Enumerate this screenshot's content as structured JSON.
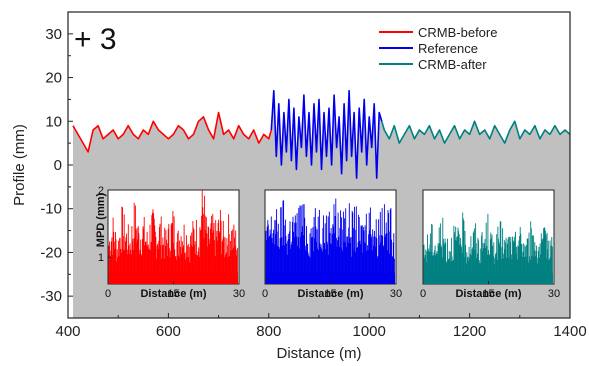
{
  "panel_label": "+ 3",
  "chart_data": [
    {
      "type": "line",
      "xlabel": "Distance (m)",
      "ylabel": "Profile (mm)",
      "xlim": [
        400,
        1400
      ],
      "ylim": [
        -35,
        35
      ],
      "x_ticks": [
        400,
        600,
        800,
        1000,
        1200,
        1400
      ],
      "y_ticks": [
        30,
        20,
        10,
        0,
        -10,
        -20,
        -30
      ],
      "fill_below": "#c0c0c0",
      "series": [
        {
          "name": "CRMB-before",
          "color": "#ff0000",
          "x": [
            410,
            420,
            430,
            440,
            450,
            460,
            470,
            480,
            490,
            500,
            510,
            520,
            530,
            540,
            550,
            560,
            570,
            580,
            590,
            600,
            610,
            620,
            630,
            640,
            650,
            660,
            670,
            680,
            690,
            700,
            710,
            720,
            730,
            740,
            750,
            760,
            770,
            780,
            790,
            800,
            805
          ],
          "y": [
            9,
            7,
            5,
            3,
            8,
            9,
            6,
            7,
            8,
            6,
            7,
            9,
            7,
            6,
            8,
            7,
            10,
            8,
            7,
            6,
            7,
            9,
            8,
            6,
            7,
            10,
            11,
            8,
            6,
            12,
            7,
            8,
            6,
            9,
            7,
            6,
            8,
            5,
            7,
            6,
            8
          ]
        },
        {
          "name": "Reference",
          "color": "#0000ee",
          "x": [
            805,
            810,
            815,
            820,
            825,
            830,
            835,
            840,
            845,
            850,
            855,
            860,
            865,
            870,
            875,
            880,
            885,
            890,
            895,
            900,
            905,
            910,
            915,
            920,
            925,
            930,
            935,
            940,
            945,
            950,
            955,
            960,
            965,
            970,
            975,
            980,
            985,
            990,
            995,
            1000,
            1005,
            1010,
            1015,
            1020,
            1025
          ],
          "y": [
            8,
            17,
            2,
            14,
            0,
            12,
            3,
            15,
            1,
            13,
            -1,
            11,
            4,
            16,
            2,
            12,
            0,
            14,
            3,
            15,
            -1,
            12,
            2,
            13,
            0,
            16,
            4,
            11,
            -2,
            14,
            1,
            17,
            2,
            12,
            -3,
            13,
            3,
            15,
            0,
            11,
            4,
            14,
            -3,
            12,
            10
          ]
        },
        {
          "name": "CRMB-after",
          "color": "#008080",
          "x": [
            1025,
            1030,
            1040,
            1050,
            1060,
            1070,
            1080,
            1090,
            1100,
            1110,
            1120,
            1130,
            1140,
            1150,
            1160,
            1170,
            1180,
            1190,
            1200,
            1210,
            1220,
            1230,
            1240,
            1250,
            1260,
            1270,
            1280,
            1290,
            1300,
            1310,
            1320,
            1330,
            1340,
            1350,
            1360,
            1370,
            1380,
            1390,
            1400
          ],
          "y": [
            10,
            8,
            6,
            9,
            5,
            7,
            9,
            6,
            8,
            7,
            9,
            6,
            8,
            5,
            7,
            9,
            6,
            8,
            7,
            10,
            7,
            8,
            6,
            9,
            7,
            5,
            8,
            10,
            6,
            8,
            7,
            9,
            6,
            8,
            7,
            9,
            7,
            8,
            7
          ]
        }
      ]
    },
    {
      "type": "bar",
      "name": "inset-crmb-before",
      "xlabel": "Distance (m)",
      "ylabel": "MPD (mm)",
      "xlim": [
        0,
        30
      ],
      "ylim": [
        0.6,
        2
      ],
      "x_ticks": [
        0,
        15,
        30
      ],
      "y_ticks": [
        1,
        2
      ],
      "color": "#ff0000",
      "x": [
        0,
        1,
        2,
        3,
        4,
        5,
        6,
        7,
        8,
        9,
        10,
        11,
        12,
        13,
        14,
        15,
        16,
        17,
        18,
        19,
        20,
        21,
        22,
        23,
        24,
        25,
        26,
        27,
        28,
        29,
        30
      ],
      "values": [
        1.3,
        1.5,
        1.2,
        1.6,
        1.4,
        1.3,
        1.7,
        1.4,
        1.5,
        1.3,
        1.6,
        1.4,
        1.5,
        1.3,
        1.4,
        1.6,
        1.3,
        1.5,
        1.4,
        1.3,
        1.5,
        1.4,
        2.0,
        1.3,
        1.5,
        1.4,
        1.6,
        1.3,
        1.5,
        1.4,
        1.3
      ]
    },
    {
      "type": "bar",
      "name": "inset-reference",
      "xlabel": "Distance (m)",
      "ylabel": "",
      "xlim": [
        0,
        30
      ],
      "ylim": [
        0.6,
        2
      ],
      "x_ticks": [
        0,
        15,
        30
      ],
      "y_ticks": [],
      "color": "#0000ee",
      "x": [
        0,
        1,
        2,
        3,
        4,
        5,
        6,
        7,
        8,
        9,
        10,
        11,
        12,
        13,
        14,
        15,
        16,
        17,
        18,
        19,
        20,
        21,
        22,
        23,
        24,
        25,
        26,
        27,
        28,
        29,
        30
      ],
      "values": [
        1.4,
        1.5,
        1.6,
        1.5,
        1.7,
        1.4,
        1.6,
        1.5,
        1.7,
        1.6,
        1.4,
        1.5,
        1.6,
        1.7,
        1.5,
        1.6,
        1.8,
        1.5,
        1.6,
        1.7,
        1.5,
        1.6,
        1.4,
        1.5,
        1.7,
        1.6,
        1.4,
        1.8,
        1.5,
        1.6,
        1.4
      ]
    },
    {
      "type": "bar",
      "name": "inset-crmb-after",
      "xlabel": "Distance (m)",
      "ylabel": "",
      "xlim": [
        0,
        30
      ],
      "ylim": [
        0.6,
        2
      ],
      "x_ticks": [
        0,
        15,
        30
      ],
      "y_ticks": [],
      "color": "#008080",
      "x": [
        0,
        1,
        2,
        3,
        4,
        5,
        6,
        7,
        8,
        9,
        10,
        11,
        12,
        13,
        14,
        15,
        16,
        17,
        18,
        19,
        20,
        21,
        22,
        23,
        24,
        25,
        26,
        27,
        28,
        29,
        30
      ],
      "values": [
        1.1,
        1.3,
        1.4,
        1.2,
        1.5,
        1.3,
        1.2,
        1.4,
        1.3,
        1.5,
        1.2,
        1.3,
        1.4,
        1.2,
        1.3,
        1.5,
        1.2,
        1.3,
        1.4,
        1.2,
        1.3,
        1.2,
        1.4,
        1.3,
        1.2,
        1.4,
        1.3,
        1.2,
        1.3,
        1.4,
        1.2
      ]
    }
  ]
}
